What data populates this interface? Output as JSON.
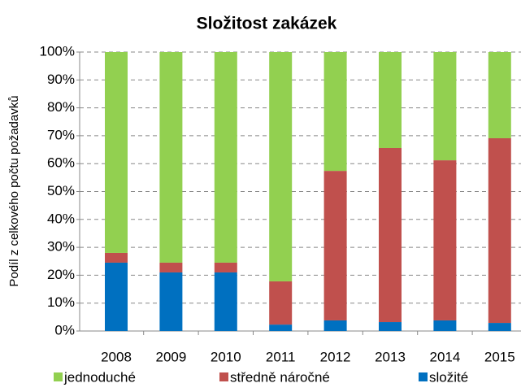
{
  "chart_data": {
    "type": "stacked_bar",
    "title": "Složitost zakázek",
    "y_label": "Podíl z celkového počtu požadavků",
    "categories": [
      "2008",
      "2009",
      "2010",
      "2011",
      "2012",
      "2013",
      "2014",
      "2015"
    ],
    "series": [
      {
        "name": "jednoduché",
        "color": "#92d050",
        "values": [
          72,
          75.5,
          75.5,
          82.2,
          42.6,
          34.4,
          38.8,
          30.9
        ]
      },
      {
        "name": "středně náročné",
        "color": "#c0504d",
        "values": [
          3.5,
          3.5,
          3.5,
          15.5,
          53.6,
          62.4,
          57.4,
          66.2
        ]
      },
      {
        "name": "složité",
        "color": "#0070c0",
        "values": [
          24.5,
          21,
          21,
          2.3,
          3.8,
          3.2,
          3.8,
          2.9
        ]
      }
    ],
    "ylim": [
      0,
      100
    ],
    "yticks": [
      {
        "value": 0,
        "label": "0%"
      },
      {
        "value": 10,
        "label": "10%"
      },
      {
        "value": 20,
        "label": "20%"
      },
      {
        "value": 30,
        "label": "30%"
      },
      {
        "value": 40,
        "label": "40%"
      },
      {
        "value": 50,
        "label": "50%"
      },
      {
        "value": 60,
        "label": "60%"
      },
      {
        "value": 70,
        "label": "70%"
      },
      {
        "value": 80,
        "label": "80%"
      },
      {
        "value": 90,
        "label": "90%"
      },
      {
        "value": 100,
        "label": "100%"
      }
    ],
    "grid": true
  }
}
